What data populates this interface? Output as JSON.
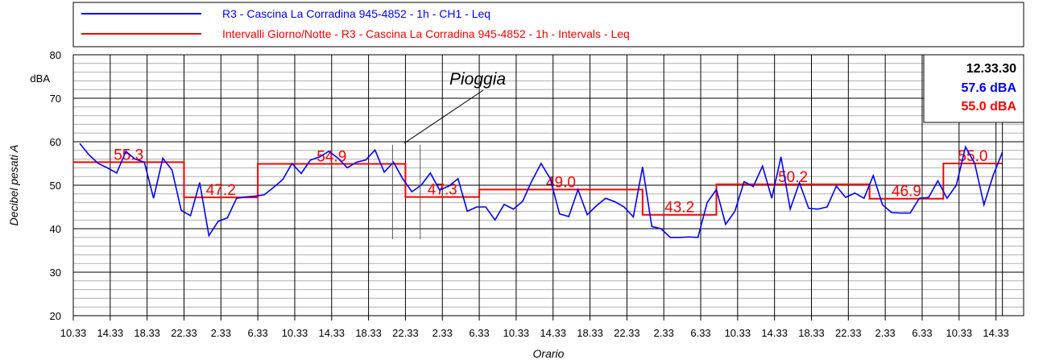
{
  "chart_data": {
    "type": "line",
    "y_label": "Decibel pesati A",
    "x_label": "Orario",
    "y_unit": "dBA",
    "ylim": [
      20,
      80
    ],
    "yticks": [
      20,
      30,
      40,
      50,
      60,
      70,
      80
    ],
    "xlim": [
      0,
      103
    ],
    "xticks": [
      {
        "value": 0,
        "label": "10.33"
      },
      {
        "value": 4,
        "label": "14.33"
      },
      {
        "value": 8,
        "label": "18.33"
      },
      {
        "value": 12,
        "label": "22.33"
      },
      {
        "value": 16,
        "label": "2.33"
      },
      {
        "value": 20,
        "label": "6.33"
      },
      {
        "value": 24,
        "label": "10.33"
      },
      {
        "value": 28,
        "label": "14.33"
      },
      {
        "value": 32,
        "label": "18.33"
      },
      {
        "value": 36,
        "label": "22.33"
      },
      {
        "value": 40,
        "label": "2.33"
      },
      {
        "value": 44,
        "label": "6.33"
      },
      {
        "value": 48,
        "label": "10.33"
      },
      {
        "value": 52,
        "label": "14.33"
      },
      {
        "value": 56,
        "label": "18.33"
      },
      {
        "value": 60,
        "label": "22.33"
      },
      {
        "value": 64,
        "label": "2.33"
      },
      {
        "value": 68,
        "label": "6.33"
      },
      {
        "value": 72,
        "label": "10.33"
      },
      {
        "value": 76,
        "label": "14.33"
      },
      {
        "value": 80,
        "label": "18.33"
      },
      {
        "value": 84,
        "label": "22.33"
      },
      {
        "value": 88,
        "label": "2.33"
      },
      {
        "value": 92,
        "label": "6.33"
      },
      {
        "value": 96,
        "label": "10.33"
      },
      {
        "value": 100,
        "label": "14.33"
      }
    ],
    "grid": true,
    "series": [
      {
        "name": "R3 - Cascina La Corradina 945-4852 - 1h - CH1 - Leq",
        "color": "#0000ff",
        "x": [
          0.7,
          1.7,
          2.7,
          3.7,
          4.7,
          5.7,
          6.7,
          7.7,
          8.7,
          9.7,
          10.7,
          11.7,
          12.7,
          13.7,
          14.7,
          15.7,
          16.7,
          17.7,
          18.7,
          19.7,
          20.7,
          21.7,
          22.7,
          23.7,
          24.7,
          25.7,
          26.7,
          27.7,
          28.7,
          29.7,
          30.7,
          31.7,
          32.7,
          33.7,
          34.7,
          35.7,
          36.7,
          37.7,
          38.7,
          39.7,
          40.7,
          41.7,
          42.7,
          43.7,
          44.7,
          45.7,
          46.7,
          47.7,
          48.7,
          49.7,
          50.7,
          51.7,
          52.7,
          53.7,
          54.7,
          55.7,
          56.7,
          57.7,
          58.7,
          59.7,
          60.7,
          61.7,
          62.7,
          63.7,
          64.7,
          65.7,
          66.7,
          67.7,
          68.7,
          69.7,
          70.7,
          71.7,
          72.7,
          73.7,
          74.7,
          75.7,
          76.7,
          77.7,
          78.7,
          79.7,
          80.7,
          81.7,
          82.7,
          83.7,
          84.7,
          85.7,
          86.7,
          87.7,
          88.7,
          89.7,
          90.7,
          91.7,
          92.7,
          93.7,
          94.7,
          95.7,
          96.7,
          97.7,
          98.7,
          99.7,
          100.7
        ],
        "values": [
          59.6,
          57,
          55,
          54,
          52.8,
          57.8,
          56,
          55.3,
          47,
          56.2,
          53.5,
          44.2,
          43,
          50.6,
          38.4,
          41.7,
          42.5,
          47,
          47.3,
          47.5,
          47.8,
          49.5,
          51.3,
          55,
          52.7,
          55.8,
          56.5,
          57.8,
          56.2,
          54,
          55.3,
          55.8,
          58.1,
          53,
          55.3,
          51.5,
          48.5,
          50,
          52.8,
          48.9,
          49.8,
          51.5,
          44,
          45,
          45,
          42,
          45.6,
          44.5,
          46.3,
          51,
          55,
          51.5,
          43.4,
          42.8,
          49,
          43.2,
          45.3,
          47,
          46.2,
          45,
          42.7,
          54.2,
          40.5,
          40,
          38,
          38,
          38.1,
          38,
          46,
          49,
          41,
          44,
          50.8,
          49.7,
          54.4,
          47,
          56.5,
          44.5,
          50.6,
          44.7,
          44.5,
          45,
          49.8,
          47.2,
          48.2,
          47,
          52.2,
          45.5,
          43.7,
          43.6,
          43.6,
          47,
          47.2,
          51,
          47,
          50,
          58.8,
          55,
          45.5,
          52.3,
          57.6
        ]
      }
    ],
    "intervals": {
      "name": "Intervalli Giorno/Notte - R3 - Cascina La Corradina 945-4852 - 1h - Intervals - Leq",
      "color": "#ff0000",
      "starts": [
        0,
        12,
        20,
        36,
        44,
        61.7,
        69.7,
        86.3,
        94.3
      ],
      "ends": [
        12,
        20,
        36,
        44,
        61.7,
        69.7,
        86.3,
        94.3,
        100.7
      ],
      "values": [
        55.3,
        47.2,
        54.9,
        47.3,
        49.0,
        43.2,
        50.2,
        46.9,
        55.0
      ],
      "value_labels": [
        "55.3",
        "47.2",
        "54.9",
        "47.3",
        "49.0",
        "43.2",
        "50.2",
        "46.9",
        "55.0"
      ]
    },
    "annotation": {
      "text": "Pioggia",
      "x": [
        34.6,
        37.6
      ],
      "y": [
        59.3,
        37.6
      ]
    },
    "cursor": {
      "x": 100.7,
      "time": "12.33.30",
      "labels": [
        "57.6 dBA",
        "55.0 dBA"
      ]
    }
  }
}
